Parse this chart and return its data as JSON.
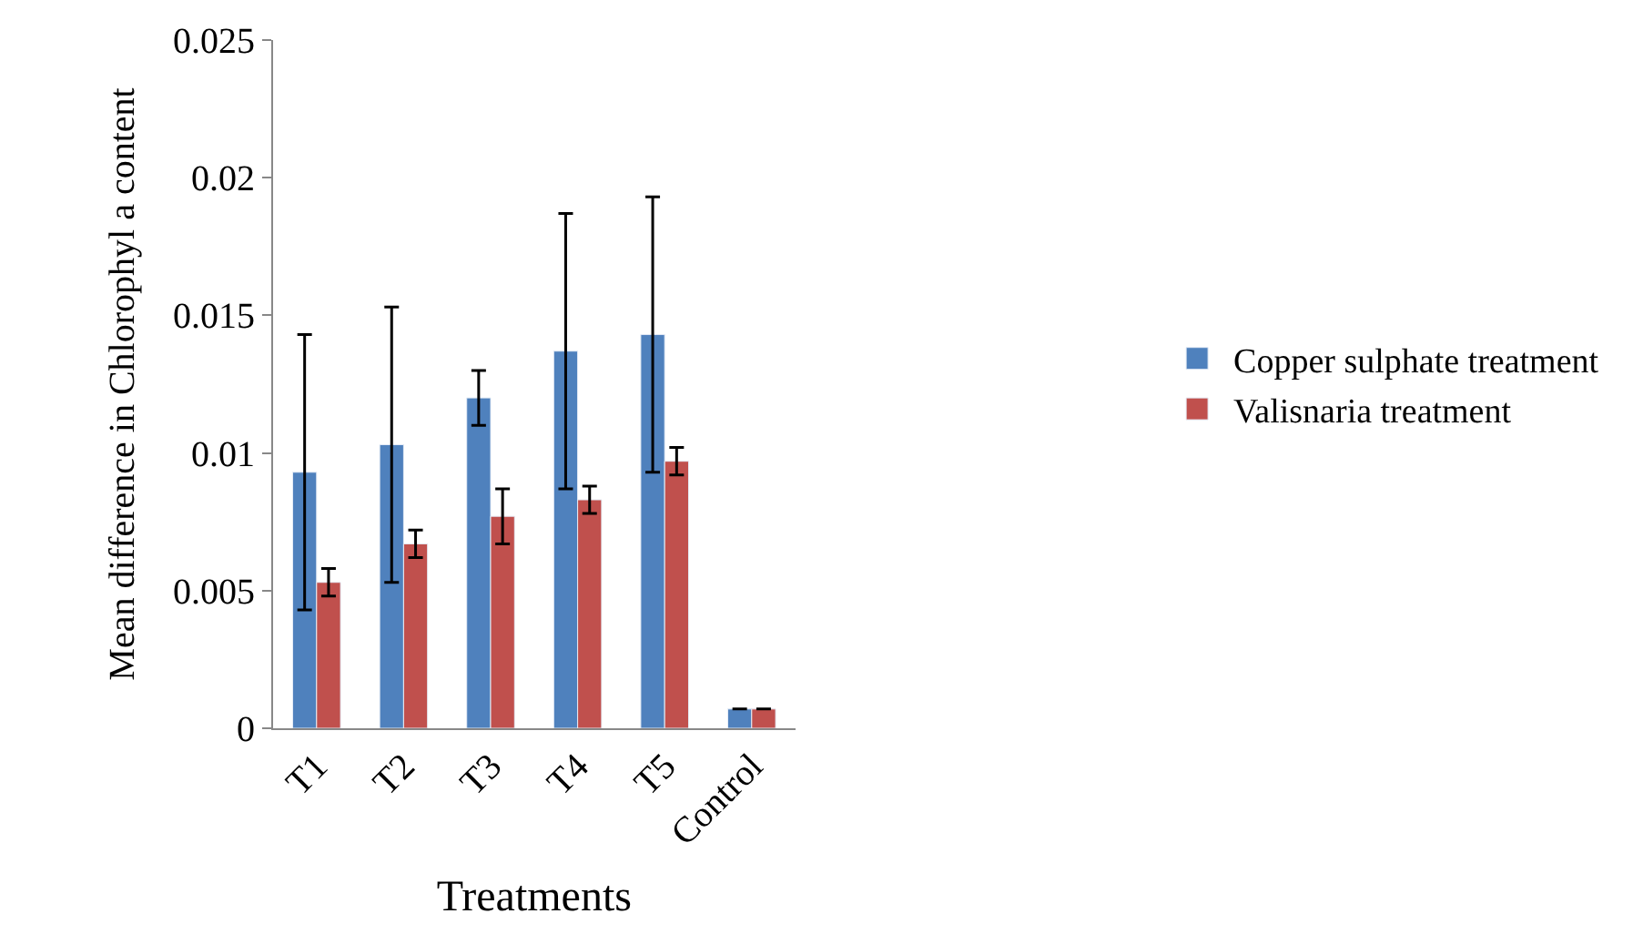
{
  "chart_data": {
    "type": "bar",
    "xlabel": "Treatments",
    "ylabel": "Mean difference in Chlorophyl a content",
    "categories": [
      "T1",
      "T2",
      "T3",
      "T4",
      "T5",
      "Control"
    ],
    "series": [
      {
        "name": "Copper sulphate treatment",
        "color": "#4f81bd",
        "values": [
          0.0093,
          0.0103,
          0.012,
          0.0137,
          0.0143,
          0.0007
        ],
        "errors": [
          0.005,
          0.005,
          0.001,
          0.005,
          0.005,
          null
        ]
      },
      {
        "name": "Valisnaria treatment",
        "color": "#c0504d",
        "values": [
          0.0053,
          0.0067,
          0.0077,
          0.0083,
          0.0097,
          0.0007
        ],
        "errors": [
          0.0005,
          0.0005,
          0.001,
          0.0005,
          0.0005,
          null
        ]
      }
    ],
    "ylim": [
      0,
      0.025
    ],
    "yticks": [
      0,
      0.005,
      0.01,
      0.015,
      0.02,
      0.025
    ],
    "grid": false,
    "legend": "right"
  }
}
